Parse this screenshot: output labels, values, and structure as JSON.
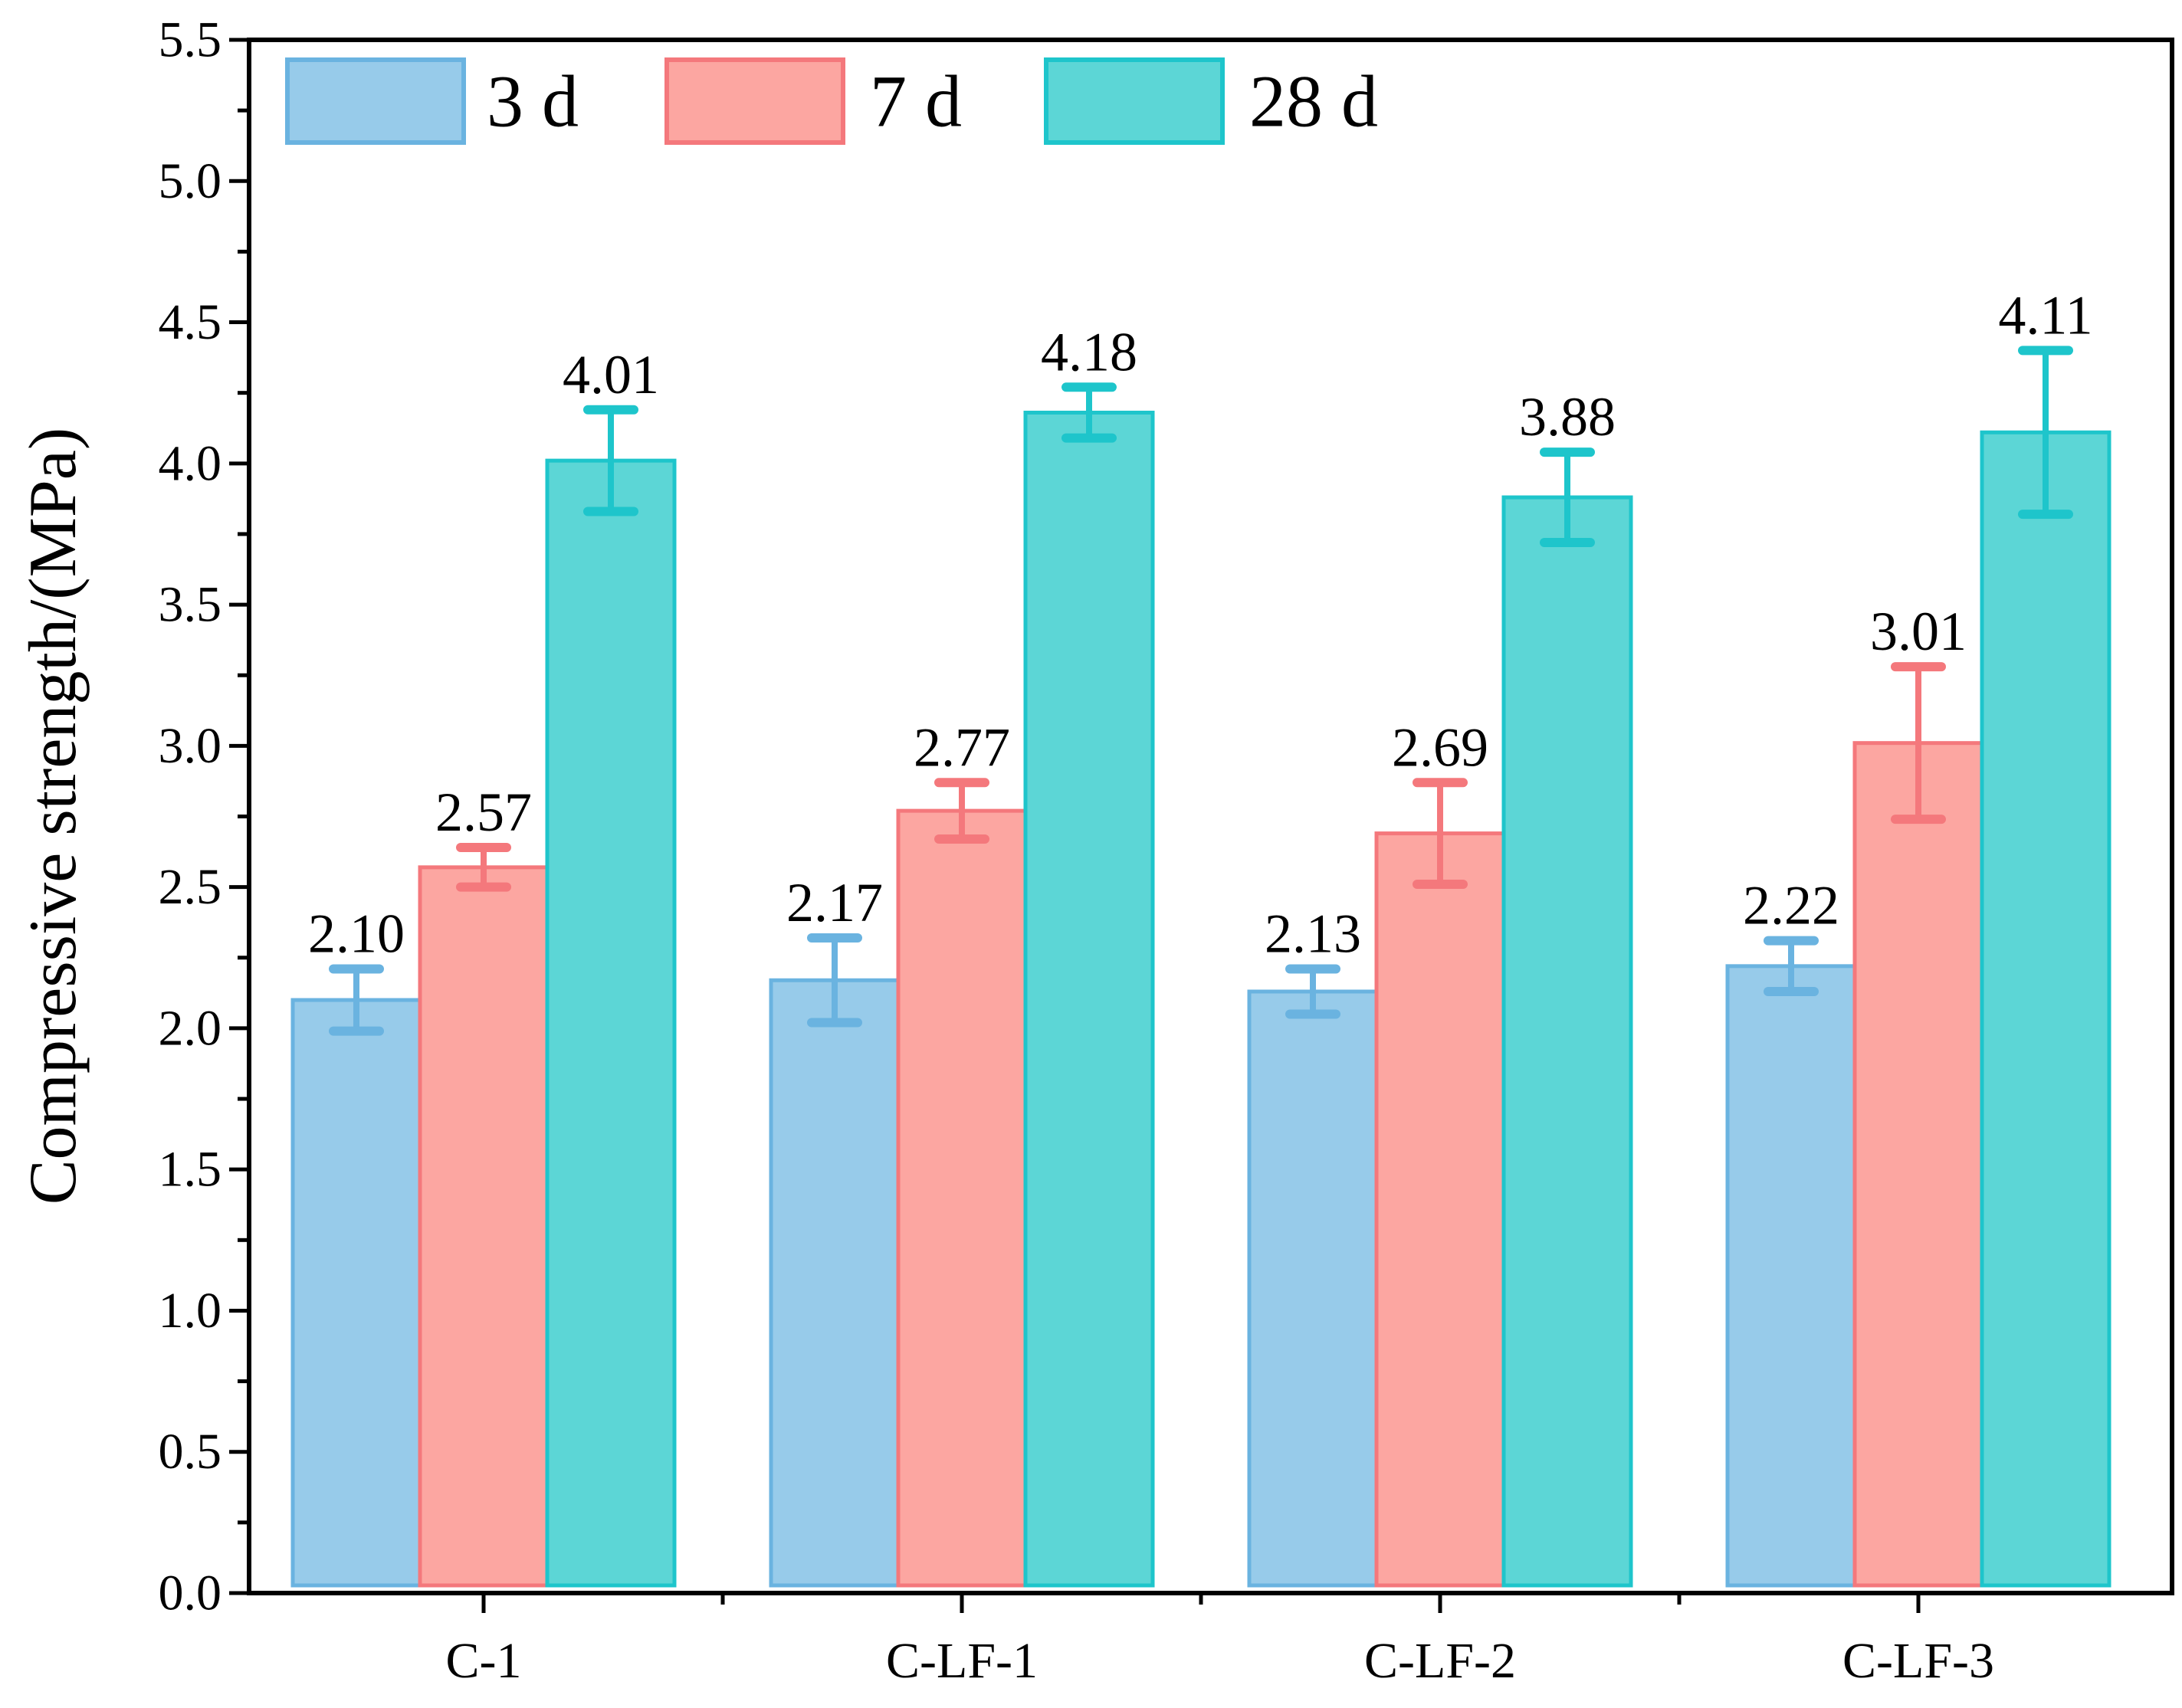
{
  "chart_data": {
    "type": "bar",
    "title": "",
    "xlabel": "",
    "ylabel": "Compressive strength/(MPa)",
    "ylim": [
      0,
      5.5
    ],
    "ytick_step": 0.5,
    "yticks": [
      "0.0",
      "0.5",
      "1.0",
      "1.5",
      "2.0",
      "2.5",
      "3.0",
      "3.5",
      "4.0",
      "4.5",
      "5.0",
      "5.5"
    ],
    "categories": [
      "C-1",
      "C-LF-1",
      "C-LF-2",
      "C-LF-3"
    ],
    "series": [
      {
        "name": "3 d",
        "fill": "#97cbea",
        "stroke": "#6ab3e0",
        "values": [
          2.1,
          2.17,
          2.13,
          2.22
        ],
        "errors": [
          0.11,
          0.15,
          0.08,
          0.09
        ],
        "labels": [
          "2.10",
          "2.17",
          "2.13",
          "2.22"
        ]
      },
      {
        "name": "7 d",
        "fill": "#fca6a1",
        "stroke": "#f4787c",
        "values": [
          2.57,
          2.77,
          2.69,
          3.01
        ],
        "errors": [
          0.07,
          0.1,
          0.18,
          0.27
        ],
        "labels": [
          "2.57",
          "2.77",
          "2.69",
          "3.01"
        ]
      },
      {
        "name": "28 d",
        "fill": "#5cd6d6",
        "stroke": "#1ec5cb",
        "values": [
          4.01,
          4.18,
          3.88,
          4.11
        ],
        "errors": [
          0.18,
          0.09,
          0.16,
          0.29
        ],
        "labels": [
          "4.01",
          "4.18",
          "3.88",
          "4.11"
        ]
      }
    ],
    "legend": {
      "position": "top-left",
      "entries": [
        "3 d",
        "7 d",
        "28 d"
      ]
    },
    "grid": false
  }
}
